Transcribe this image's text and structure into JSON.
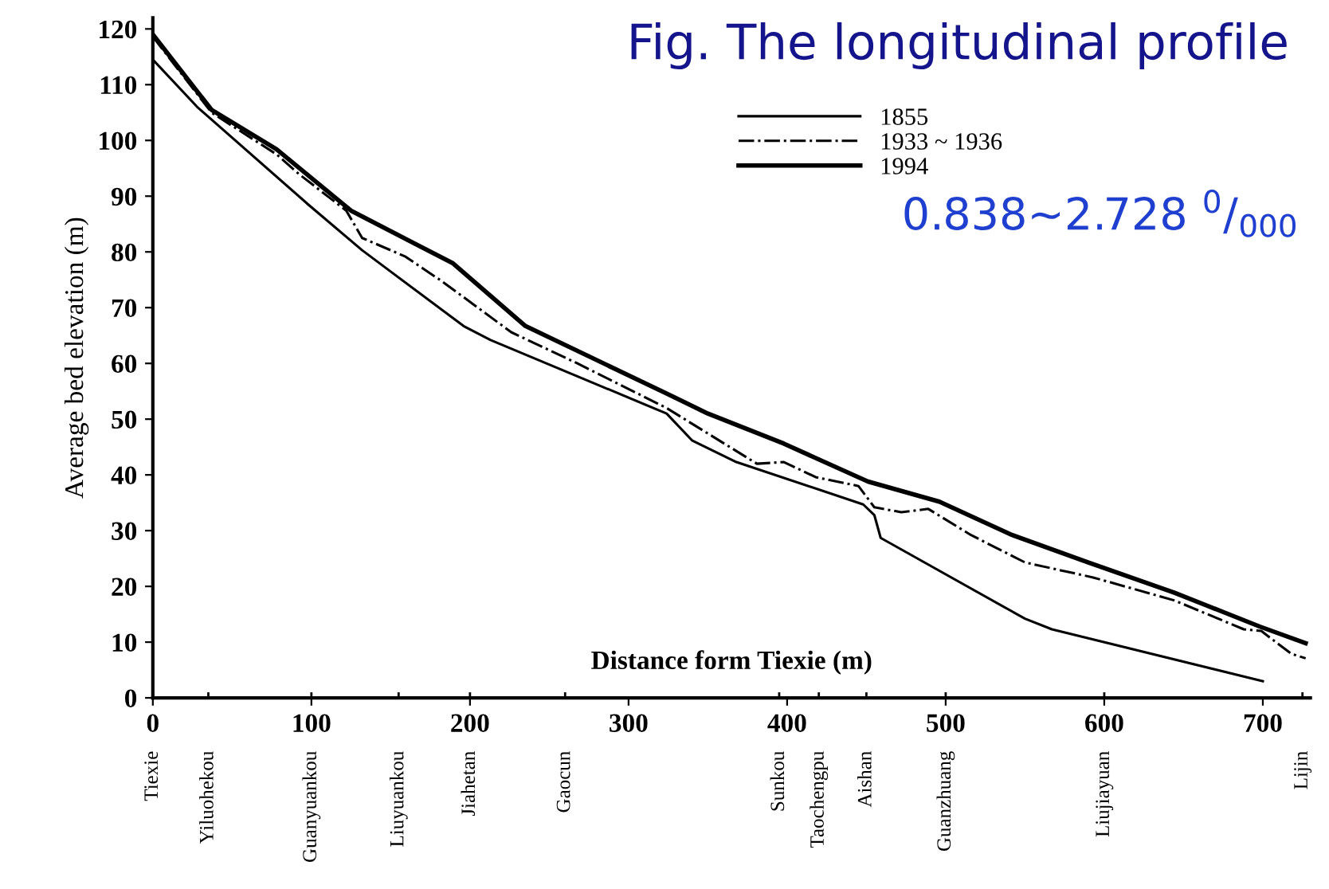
{
  "chart_data": {
    "type": "line",
    "title": "Fig. The longitudinal profile",
    "xlabel": "Distance form Tiexie (m)",
    "ylabel": "Average bed elevation (m)",
    "xlim": [
      0,
      730
    ],
    "ylim": [
      0,
      122
    ],
    "xticks": [
      0,
      100,
      200,
      300,
      400,
      500,
      600,
      700,
      {
        "value": 0,
        "label": null
      },
      {
        "value": 35,
        "label": null
      },
      {
        "value": 100,
        "label": null
      },
      {
        "value": 155,
        "label": null
      },
      {
        "value": 200,
        "label": null
      },
      {
        "value": 260,
        "label": null
      },
      {
        "value": 395,
        "label": null
      },
      {
        "value": 420,
        "label": null
      },
      {
        "value": 450,
        "label": null
      },
      {
        "value": 500,
        "label": null
      },
      {
        "value": 600,
        "label": null
      },
      {
        "value": 725,
        "label": null
      }
    ],
    "yticks": [
      0,
      10,
      20,
      30,
      40,
      50,
      60,
      70,
      80,
      90,
      100,
      110,
      120
    ],
    "grid": false,
    "legend": "top",
    "marker": "none",
    "series": [
      {
        "name": "1855",
        "color": "#000000",
        "line_style": "solid",
        "x": [
          0,
          28,
          98,
          132,
          196,
          213,
          324,
          340,
          368,
          448,
          455,
          459,
          550,
          567,
          700
        ],
        "values": [
          114.5,
          106,
          88.5,
          80.3,
          66.7,
          64.2,
          51,
          46.2,
          42.3,
          34.7,
          32.8,
          28.7,
          14.2,
          12.3,
          3
        ]
      },
      {
        "name": "1933 ~ 1936",
        "color": "#000000",
        "line_style": "dashdot",
        "x": [
          0,
          37,
          78,
          92,
          122,
          132,
          159,
          182,
          226,
          267,
          324,
          365,
          381,
          398,
          418,
          445,
          455,
          472,
          489,
          516,
          550,
          593,
          644,
          688,
          699,
          718,
          727
        ],
        "values": [
          118.6,
          105,
          97.5,
          94,
          87.4,
          82.5,
          79.2,
          74.8,
          65.6,
          60.1,
          52,
          44.8,
          42,
          42.3,
          39.6,
          38,
          34.2,
          33.3,
          33.9,
          29.2,
          24.3,
          21.6,
          17.5,
          12.3,
          12,
          7.9,
          7.1
        ]
      },
      {
        "name": "1994",
        "color": "#000000",
        "line_style": "solid",
        "x": [
          0,
          37,
          78,
          125,
          189,
          235,
          324,
          350,
          398,
          451,
          496,
          542,
          590,
          644,
          698,
          727
        ],
        "values": [
          119,
          105.5,
          98.4,
          87.4,
          78,
          66.7,
          54.6,
          51,
          45.6,
          38.8,
          35.2,
          29.2,
          24.3,
          18.9,
          12.8,
          9.8
        ]
      }
    ],
    "annotations": [
      "0.838~2.728 $^{0}$/$_{000}$",
      "Tiexie",
      "Yiluohekou",
      "Guanyuankou",
      "Liuyuankou",
      "Jiahetan",
      "Gaocun",
      "Sunkou",
      "Taochengpu",
      "Aishan",
      "Guanzhuang",
      "Liujiayuan",
      "Lijin"
    ]
  }
}
